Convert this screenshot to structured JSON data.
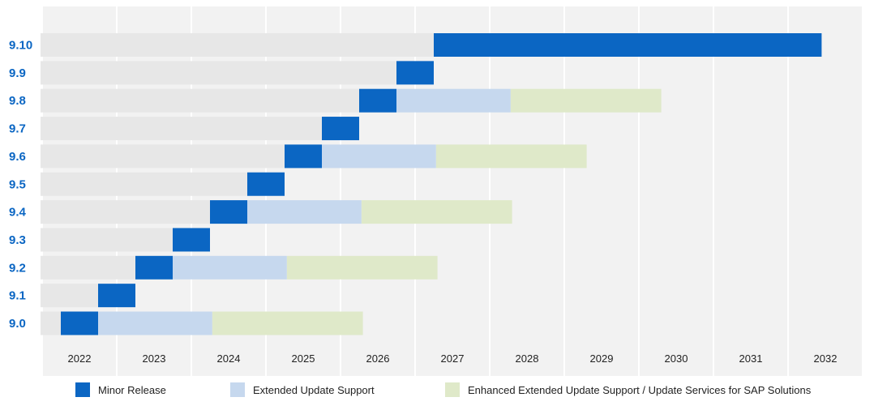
{
  "colors": {
    "minor": "#0b66c3",
    "eus": "#c6d8ee",
    "eeus": "#dfe9c9",
    "track": "#e7e7e7",
    "background": "#f2f2f2"
  },
  "chart_data": {
    "type": "bar",
    "subtype": "horizontal-timeline",
    "x": [
      "2022",
      "2023",
      "2024",
      "2025",
      "2026",
      "2027",
      "2028",
      "2029",
      "2030",
      "2031",
      "2032"
    ],
    "xlim": [
      2021.5,
      2032.5
    ],
    "grid": true,
    "legend_position": "bottom",
    "legend": [
      {
        "key": "minor",
        "label": "Minor Release"
      },
      {
        "key": "eus",
        "label": "Extended Update Support"
      },
      {
        "key": "eeus",
        "label": "Enhanced Extended Update Support / Update Services for SAP Solutions"
      }
    ],
    "versions": [
      {
        "label": "9.10",
        "minor": [
          2026.75,
          2031.95
        ],
        "eus": null,
        "eeus": null
      },
      {
        "label": "9.9",
        "minor": [
          2026.25,
          2026.75
        ],
        "eus": null,
        "eeus": null
      },
      {
        "label": "9.8",
        "minor": [
          2025.75,
          2026.25
        ],
        "eus": [
          2026.25,
          2027.78
        ],
        "eeus": [
          2027.78,
          2029.8
        ]
      },
      {
        "label": "9.7",
        "minor": [
          2025.25,
          2025.75
        ],
        "eus": null,
        "eeus": null
      },
      {
        "label": "9.6",
        "minor": [
          2024.75,
          2025.25
        ],
        "eus": [
          2025.25,
          2026.78
        ],
        "eeus": [
          2026.78,
          2028.8
        ]
      },
      {
        "label": "9.5",
        "minor": [
          2024.25,
          2024.75
        ],
        "eus": null,
        "eeus": null
      },
      {
        "label": "9.4",
        "minor": [
          2023.75,
          2024.25
        ],
        "eus": [
          2024.25,
          2025.78
        ],
        "eeus": [
          2025.78,
          2027.8
        ]
      },
      {
        "label": "9.3",
        "minor": [
          2023.25,
          2023.75
        ],
        "eus": null,
        "eeus": null
      },
      {
        "label": "9.2",
        "minor": [
          2022.75,
          2023.25
        ],
        "eus": [
          2023.25,
          2024.78
        ],
        "eeus": [
          2024.78,
          2026.8
        ]
      },
      {
        "label": "9.1",
        "minor": [
          2022.25,
          2022.75
        ],
        "eus": null,
        "eeus": null
      },
      {
        "label": "9.0",
        "minor": [
          2021.75,
          2022.25
        ],
        "eus": [
          2022.25,
          2023.78
        ],
        "eeus": [
          2023.78,
          2025.8
        ]
      }
    ]
  }
}
